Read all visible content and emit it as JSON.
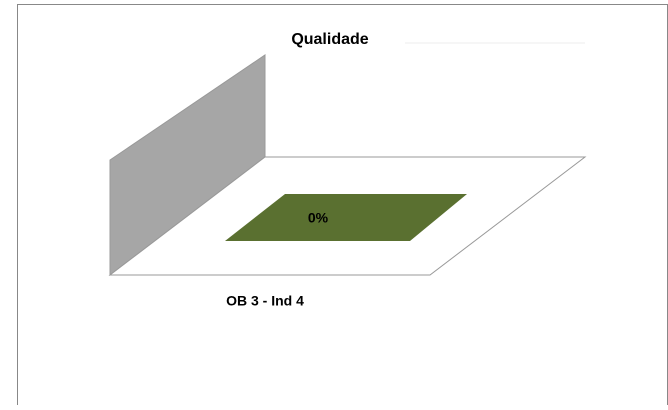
{
  "chart_data": {
    "type": "bar3d",
    "title": "Qualidade",
    "categories": [
      "OB 3 - Ind 4"
    ],
    "values": [
      0
    ],
    "value_labels": [
      "0%"
    ],
    "color": "#5a7030"
  }
}
